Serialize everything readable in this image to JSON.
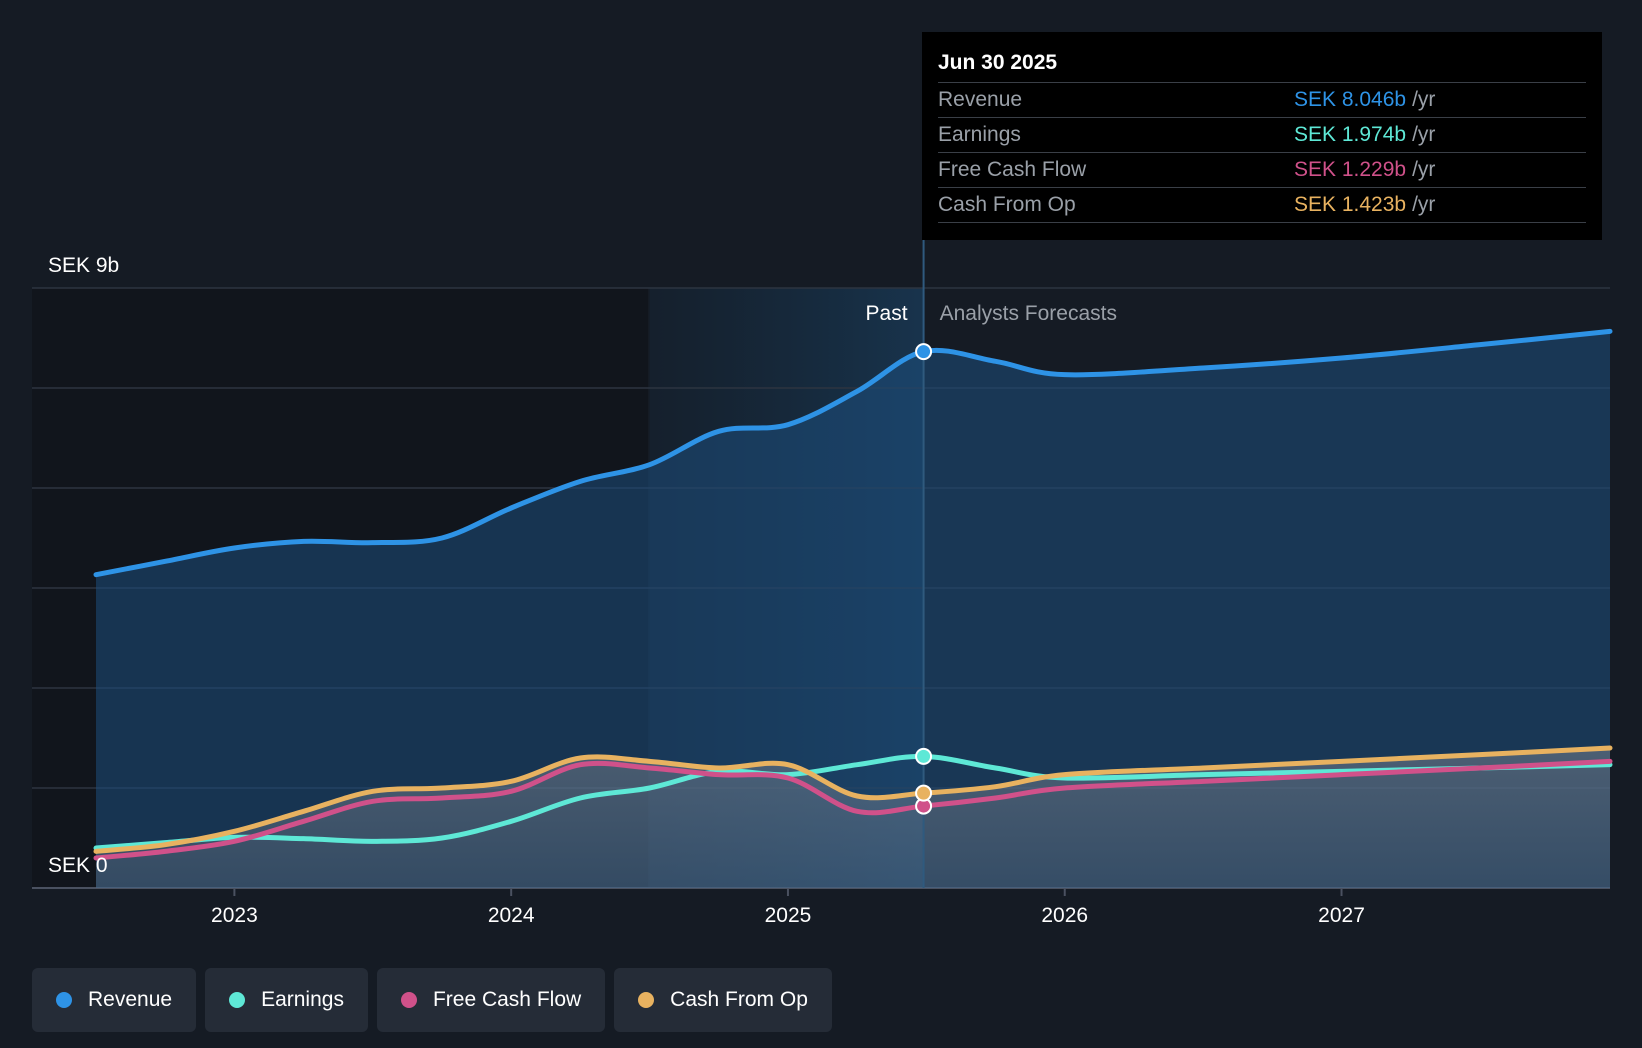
{
  "chart_data": {
    "type": "area",
    "y_axis": {
      "top_label": "SEK 9b",
      "bottom_label": "SEK 0",
      "ylim": [
        0,
        9
      ],
      "unit": "SEK b"
    },
    "x_axis": {
      "ticks": [
        "2023",
        "2024",
        "2025",
        "2026",
        "2027"
      ],
      "tick_values": [
        2023,
        2024,
        2025,
        2026,
        2027
      ],
      "xlim": [
        2022.5,
        2027.97
      ]
    },
    "sections": {
      "past_label": "Past",
      "forecast_label": "Analysts Forecasts",
      "divider_x": 2025.49,
      "shade_start_x": 2024.5
    },
    "series": [
      {
        "name": "Revenue",
        "color": "#2e93e6",
        "points": [
          [
            2022.5,
            4.7
          ],
          [
            2022.75,
            4.9
          ],
          [
            2023.0,
            5.1
          ],
          [
            2023.25,
            5.2
          ],
          [
            2023.5,
            5.18
          ],
          [
            2023.75,
            5.25
          ],
          [
            2024.0,
            5.7
          ],
          [
            2024.25,
            6.1
          ],
          [
            2024.5,
            6.35
          ],
          [
            2024.75,
            6.85
          ],
          [
            2025.0,
            6.95
          ],
          [
            2025.25,
            7.45
          ],
          [
            2025.49,
            8.046
          ],
          [
            2025.75,
            7.9
          ],
          [
            2026.0,
            7.7
          ],
          [
            2026.5,
            7.8
          ],
          [
            2027.0,
            7.95
          ],
          [
            2027.5,
            8.15
          ],
          [
            2027.97,
            8.35
          ]
        ]
      },
      {
        "name": "Earnings",
        "color": "#5ee8d6",
        "points": [
          [
            2022.5,
            0.6
          ],
          [
            2022.75,
            0.68
          ],
          [
            2023.0,
            0.76
          ],
          [
            2023.25,
            0.74
          ],
          [
            2023.5,
            0.7
          ],
          [
            2023.75,
            0.75
          ],
          [
            2024.0,
            1.0
          ],
          [
            2024.25,
            1.35
          ],
          [
            2024.5,
            1.5
          ],
          [
            2024.75,
            1.75
          ],
          [
            2025.0,
            1.7
          ],
          [
            2025.25,
            1.85
          ],
          [
            2025.49,
            1.974
          ],
          [
            2025.75,
            1.8
          ],
          [
            2026.0,
            1.65
          ],
          [
            2026.5,
            1.7
          ],
          [
            2027.0,
            1.75
          ],
          [
            2027.5,
            1.8
          ],
          [
            2027.97,
            1.85
          ]
        ]
      },
      {
        "name": "Free Cash Flow",
        "color": "#d0518a",
        "points": [
          [
            2022.5,
            0.45
          ],
          [
            2022.75,
            0.55
          ],
          [
            2023.0,
            0.7
          ],
          [
            2023.25,
            1.0
          ],
          [
            2023.5,
            1.3
          ],
          [
            2023.75,
            1.35
          ],
          [
            2024.0,
            1.45
          ],
          [
            2024.25,
            1.85
          ],
          [
            2024.5,
            1.8
          ],
          [
            2024.75,
            1.7
          ],
          [
            2025.0,
            1.65
          ],
          [
            2025.25,
            1.15
          ],
          [
            2025.49,
            1.229
          ],
          [
            2025.75,
            1.35
          ],
          [
            2026.0,
            1.5
          ],
          [
            2026.5,
            1.6
          ],
          [
            2027.0,
            1.7
          ],
          [
            2027.5,
            1.8
          ],
          [
            2027.97,
            1.9
          ]
        ]
      },
      {
        "name": "Cash From Op",
        "color": "#e8b260",
        "points": [
          [
            2022.5,
            0.55
          ],
          [
            2022.75,
            0.65
          ],
          [
            2023.0,
            0.85
          ],
          [
            2023.25,
            1.15
          ],
          [
            2023.5,
            1.45
          ],
          [
            2023.75,
            1.5
          ],
          [
            2024.0,
            1.6
          ],
          [
            2024.25,
            1.95
          ],
          [
            2024.5,
            1.9
          ],
          [
            2024.75,
            1.8
          ],
          [
            2025.0,
            1.85
          ],
          [
            2025.25,
            1.38
          ],
          [
            2025.49,
            1.423
          ],
          [
            2025.75,
            1.52
          ],
          [
            2026.0,
            1.7
          ],
          [
            2026.5,
            1.8
          ],
          [
            2027.0,
            1.9
          ],
          [
            2027.5,
            2.0
          ],
          [
            2027.97,
            2.1
          ]
        ]
      }
    ]
  },
  "tooltip": {
    "date": "Jun 30 2025",
    "rows": [
      {
        "label": "Revenue",
        "value": "SEK 8.046b",
        "unit": "/yr",
        "color": "#2e93e6"
      },
      {
        "label": "Earnings",
        "value": "SEK 1.974b",
        "unit": "/yr",
        "color": "#5ee8d6"
      },
      {
        "label": "Free Cash Flow",
        "value": "SEK 1.229b",
        "unit": "/yr",
        "color": "#d0518a"
      },
      {
        "label": "Cash From Op",
        "value": "SEK 1.423b",
        "unit": "/yr",
        "color": "#e8b260"
      }
    ]
  },
  "legend": {
    "items": [
      {
        "label": "Revenue",
        "color": "#2e93e6"
      },
      {
        "label": "Earnings",
        "color": "#5ee8d6"
      },
      {
        "label": "Free Cash Flow",
        "color": "#d0518a"
      },
      {
        "label": "Cash From Op",
        "color": "#e8b260"
      }
    ]
  }
}
